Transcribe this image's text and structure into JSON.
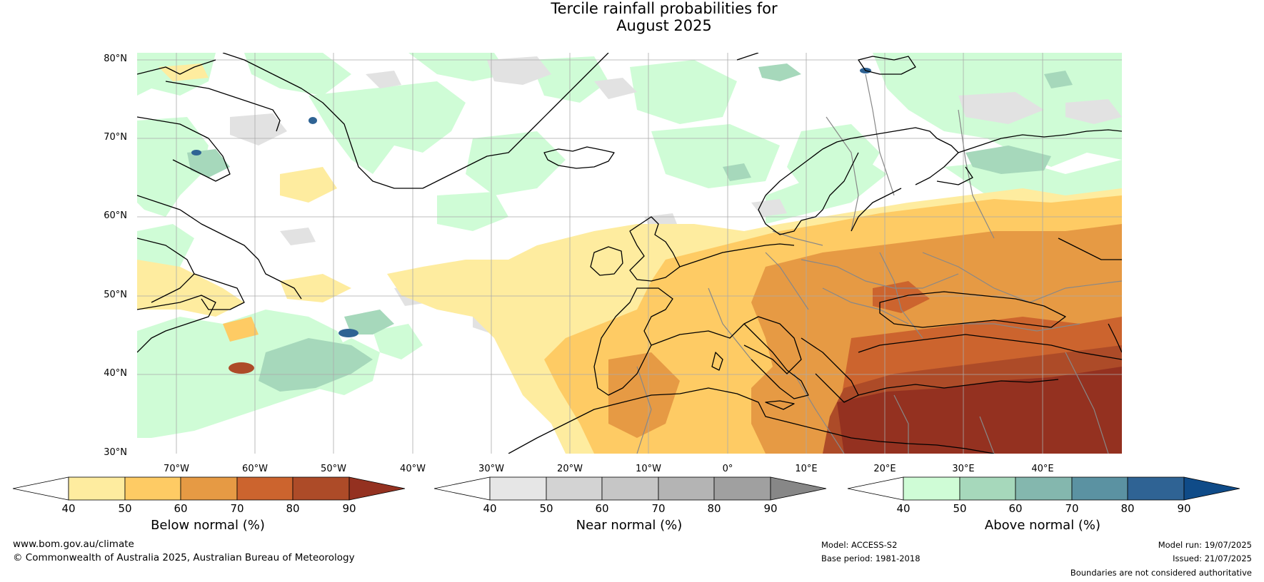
{
  "title": {
    "line1": "Tercile rainfall probabilities for",
    "line2": "August 2025"
  },
  "map": {
    "lat_labels": [
      "80°N",
      "70°N",
      "60°N",
      "50°N",
      "40°N",
      "30°N"
    ],
    "lon_labels": [
      "70°W",
      "60°W",
      "50°W",
      "40°W",
      "30°W",
      "20°W",
      "10°W",
      "0°",
      "10°E",
      "20°E",
      "30°E",
      "40°E"
    ],
    "extent": {
      "lon": [
        -75,
        50
      ],
      "lat": [
        30,
        81
      ]
    }
  },
  "colorbars": [
    {
      "label": "Below normal (%)",
      "ticks": [
        "40",
        "50",
        "60",
        "70",
        "80",
        "90"
      ],
      "colors": [
        "#ffffff",
        "#feec9f",
        "#fecb64",
        "#e69a44",
        "#cc642e",
        "#ad4b28",
        "#943120"
      ]
    },
    {
      "label": "Near normal (%)",
      "ticks": [
        "40",
        "50",
        "60",
        "70",
        "80",
        "90"
      ],
      "colors": [
        "#ffffff",
        "#e6e6e6",
        "#d3d3d3",
        "#c6c6c6",
        "#b4b4b4",
        "#a0a0a0",
        "#878787"
      ]
    },
    {
      "label": "Above normal (%)",
      "ticks": [
        "40",
        "50",
        "60",
        "70",
        "80",
        "90"
      ],
      "colors": [
        "#ffffff",
        "#cffcd6",
        "#a6d8bb",
        "#84b7ae",
        "#5b92a2",
        "#2f6394",
        "#0f4b88"
      ]
    }
  ],
  "footer": {
    "website": "www.bom.gov.au/climate",
    "copyright": "© Commonwealth of Australia 2025, Australian Bureau of Meteorology",
    "model": "Model: ACCESS-S2",
    "base_period": "Base period: 1981-2018",
    "model_run": "Model run: 19/07/2025",
    "issued": "Issued: 21/07/2025",
    "boundaries": "Boundaries are not considered authoritative"
  },
  "colors": {
    "coast": "#000000",
    "borders": "#888888",
    "grid": "#aaaaaa"
  }
}
